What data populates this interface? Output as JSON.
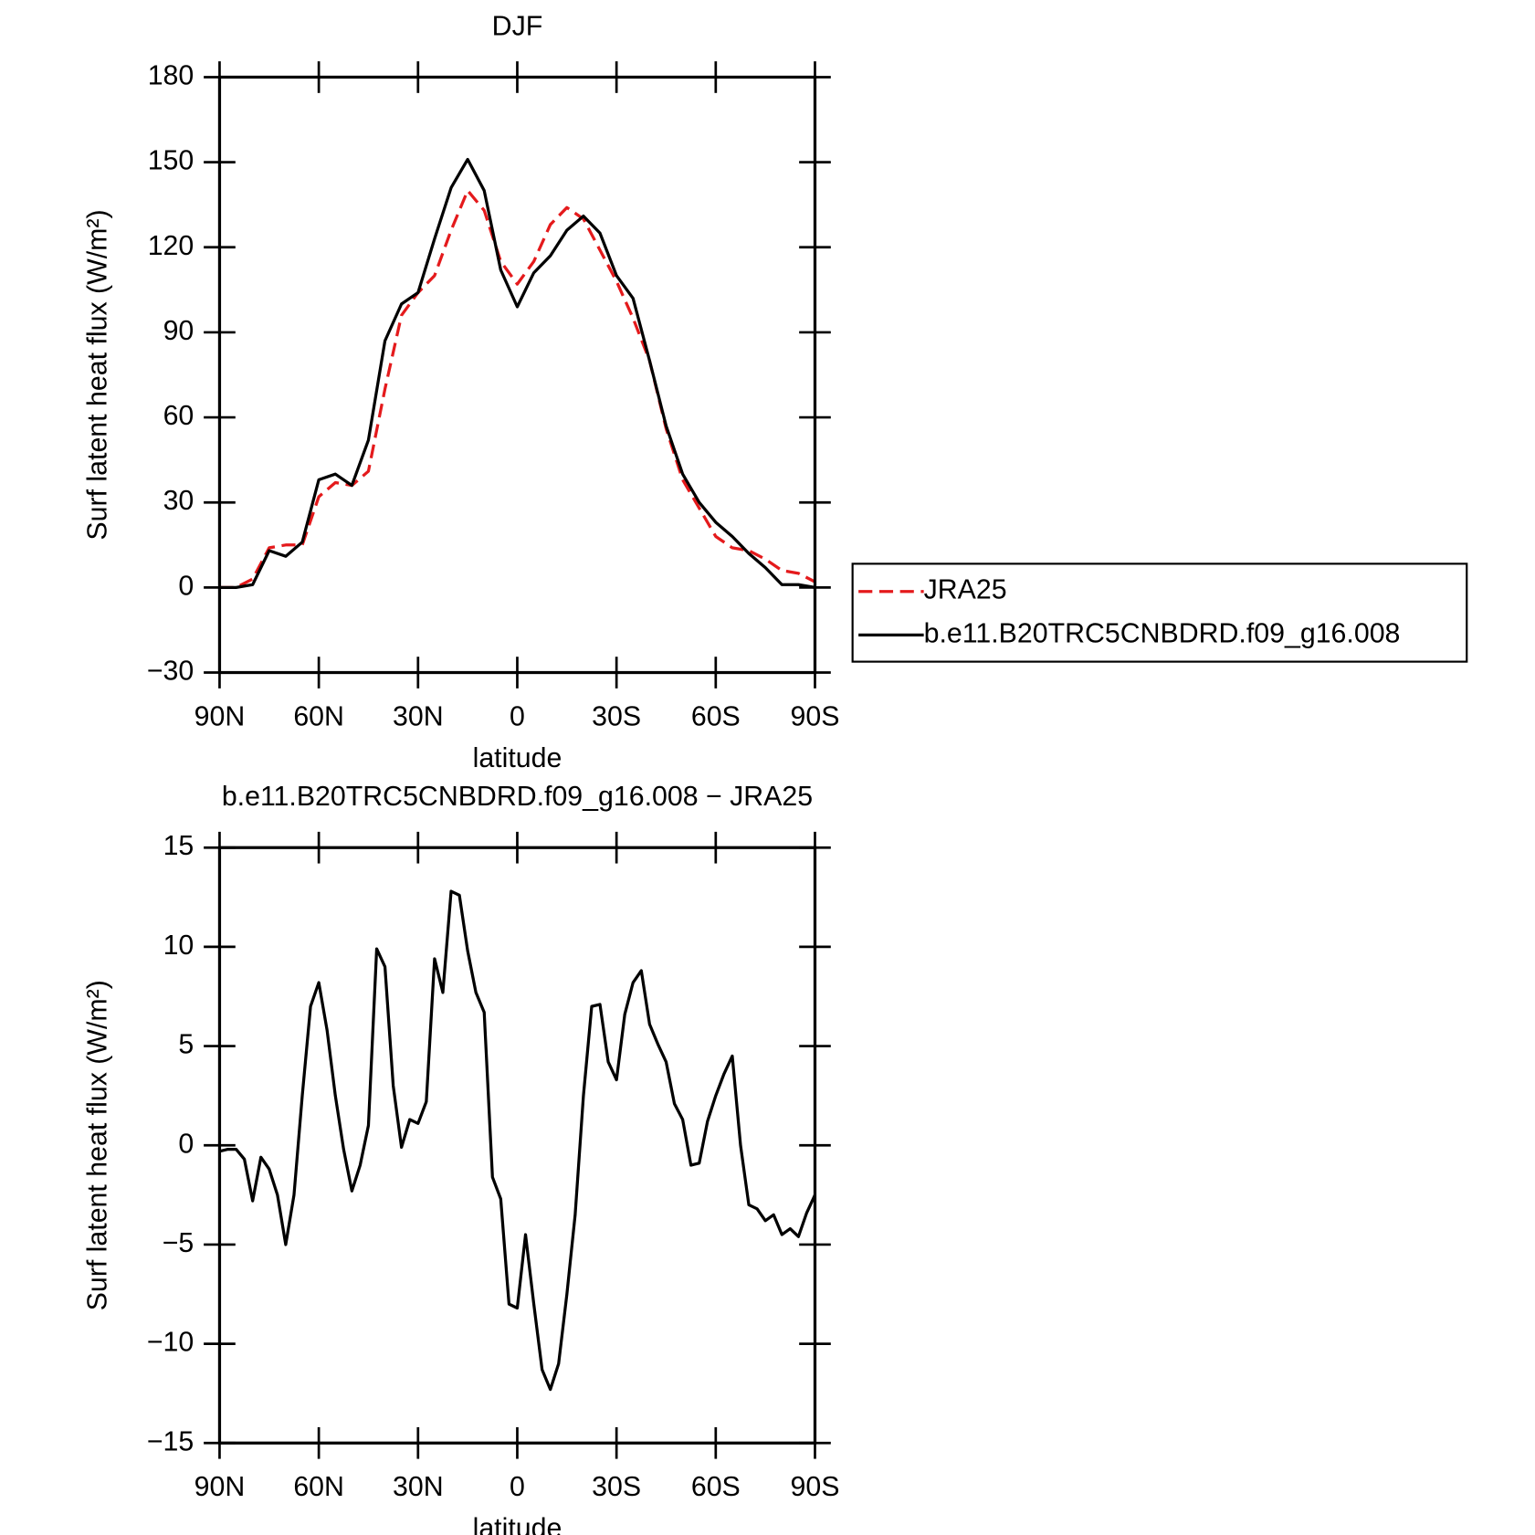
{
  "chart_data": [
    {
      "type": "line",
      "title": "DJF",
      "xlabel": "latitude",
      "ylabel": "Surf latent heat flux (W/m²)",
      "x": [
        90,
        85,
        80,
        75,
        70,
        65,
        60,
        55,
        50,
        45,
        40,
        35,
        30,
        25,
        20,
        15,
        10,
        5,
        0,
        -5,
        -10,
        -15,
        -20,
        -25,
        -30,
        -35,
        -40,
        -45,
        -50,
        -55,
        -60,
        -65,
        -70,
        -75,
        -80,
        -85,
        -90
      ],
      "series": [
        {
          "name": "JRA25",
          "color": "#e41a1c",
          "dash": true,
          "values": [
            0,
            0,
            3,
            14,
            15,
            15,
            32,
            37,
            36,
            41,
            70,
            96,
            104,
            110,
            126,
            140,
            133,
            115,
            107,
            115,
            128,
            134,
            130,
            119,
            108,
            95,
            80,
            56,
            38,
            28,
            18,
            14,
            13,
            10,
            6,
            5,
            2
          ]
        },
        {
          "name": "b.e11.B20TRC5CNBDRD.f09_g16.008",
          "color": "#000000",
          "dash": false,
          "values": [
            0,
            0,
            1,
            13,
            11,
            16,
            38,
            40,
            36,
            52,
            87,
            100,
            104,
            123,
            141,
            151,
            140,
            112,
            99,
            111,
            117,
            126,
            131,
            125,
            110,
            102,
            80,
            57,
            40,
            30,
            23,
            18,
            12,
            7,
            1,
            1,
            0
          ]
        }
      ],
      "xlim": [
        90,
        -90
      ],
      "xticks": [
        {
          "value": 90,
          "label": "90N"
        },
        {
          "value": 60,
          "label": "60N"
        },
        {
          "value": 30,
          "label": "30N"
        },
        0,
        {
          "value": -30,
          "label": "30S"
        },
        {
          "value": -60,
          "label": "60S"
        },
        {
          "value": -90,
          "label": "90S"
        }
      ],
      "ylim": [
        -30,
        180
      ],
      "yticks": [
        180,
        150,
        120,
        90,
        60,
        30,
        0,
        {
          "value": -30,
          "label": "−30"
        }
      ],
      "legend": "right"
    },
    {
      "type": "line",
      "title": "b.e11.B20TRC5CNBDRD.f09_g16.008 − JRA25",
      "xlabel": "latitude",
      "ylabel": "Surf latent heat flux (W/m²)",
      "x": [
        90,
        87.5,
        85,
        82.5,
        80,
        77.5,
        75,
        72.5,
        70,
        67.5,
        65,
        62.5,
        60,
        57.5,
        55,
        52.5,
        50,
        47.5,
        45,
        42.5,
        40,
        37.5,
        35,
        32.5,
        30,
        27.5,
        25,
        22.5,
        20,
        17.5,
        15,
        12.5,
        10,
        7.5,
        5,
        2.5,
        0,
        -2.5,
        -5,
        -7.5,
        -10,
        -12.5,
        -15,
        -17.5,
        -20,
        -22.5,
        -25,
        -27.5,
        -30,
        -32.5,
        -35,
        -37.5,
        -40,
        -42.5,
        -45,
        -47.5,
        -50,
        -52.5,
        -55,
        -57.5,
        -60,
        -62.5,
        -65,
        -67.5,
        -70,
        -72.5,
        -75,
        -77.5,
        -80,
        -82.5,
        -85,
        -87.5,
        -90
      ],
      "series": [
        {
          "color": "#000000",
          "dash": false,
          "values": [
            -0.3,
            -0.2,
            -0.2,
            -0.7,
            -2.8,
            -0.6,
            -1.2,
            -2.5,
            -5.0,
            -2.5,
            2.5,
            7.0,
            8.2,
            5.8,
            2.5,
            -0.2,
            -2.3,
            -1.0,
            1.0,
            9.9,
            9.0,
            3.0,
            -0.1,
            1.3,
            1.1,
            2.2,
            9.4,
            7.7,
            12.8,
            12.6,
            9.8,
            7.7,
            6.7,
            -1.6,
            -2.7,
            -8.0,
            -8.2,
            -4.5,
            -8.0,
            -11.3,
            -12.3,
            -11.0,
            -7.5,
            -3.5,
            2.5,
            7.0,
            7.1,
            4.2,
            3.3,
            6.6,
            8.2,
            8.8,
            6.1,
            5.1,
            4.2,
            2.1,
            1.3,
            -1.0,
            -0.9,
            1.2,
            2.5,
            3.6,
            4.5,
            0,
            -3.0,
            -3.2,
            -3.8,
            -3.5,
            -4.5,
            -4.2,
            -4.6,
            -3.4,
            -2.5
          ]
        }
      ],
      "xlim": [
        90,
        -90
      ],
      "xticks": [
        {
          "value": 90,
          "label": "90N"
        },
        {
          "value": 60,
          "label": "60N"
        },
        {
          "value": 30,
          "label": "30N"
        },
        0,
        {
          "value": -30,
          "label": "30S"
        },
        {
          "value": -60,
          "label": "60S"
        },
        {
          "value": -90,
          "label": "90S"
        }
      ],
      "ylim": [
        -15,
        15
      ],
      "yticks": [
        15,
        10,
        5,
        0,
        {
          "value": -5,
          "label": "−5"
        },
        {
          "value": -10,
          "label": "−10"
        },
        {
          "value": -15,
          "label": "−15"
        }
      ]
    }
  ]
}
